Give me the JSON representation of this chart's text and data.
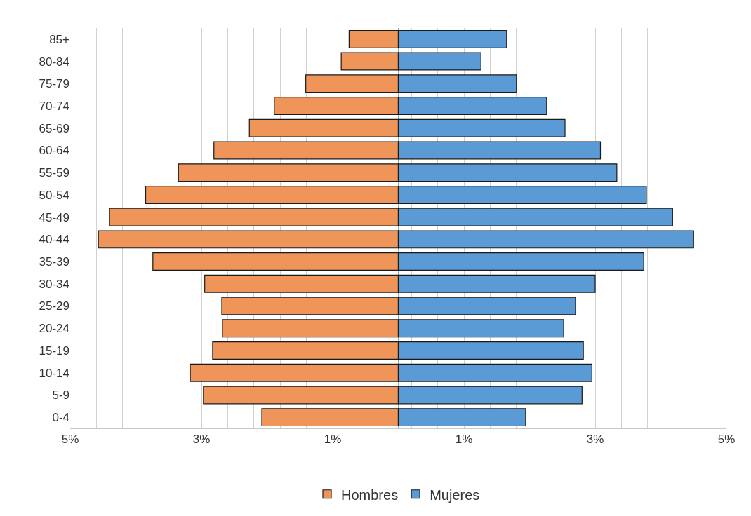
{
  "chart_data": {
    "type": "bar",
    "orientation": "horizontal",
    "categories": [
      "85+",
      "80-84",
      "75-79",
      "70-74",
      "65-69",
      "60-64",
      "55-59",
      "50-54",
      "45-49",
      "40-44",
      "35-39",
      "30-34",
      "25-29",
      "20-24",
      "15-19",
      "10-14",
      "5-9",
      "0-4"
    ],
    "series": [
      {
        "name": "Hombres",
        "color": "#f0955a",
        "values": [
          -0.75,
          -0.87,
          -1.41,
          -1.89,
          -2.27,
          -2.81,
          -3.35,
          -3.85,
          -4.4,
          -4.57,
          -3.74,
          -2.95,
          -2.69,
          -2.68,
          -2.83,
          -3.17,
          -2.97,
          -2.08
        ]
      },
      {
        "name": "Mujeres",
        "color": "#5b9bd5",
        "values": [
          1.65,
          1.26,
          1.8,
          2.26,
          2.54,
          3.08,
          3.33,
          3.78,
          4.18,
          4.5,
          3.74,
          3.0,
          2.7,
          2.52,
          2.82,
          2.95,
          2.8,
          1.94
        ]
      }
    ],
    "xlim": [
      -5,
      5
    ],
    "xticks": [
      {
        "value": -5,
        "label": "5%"
      },
      {
        "value": -4.6,
        "label": null
      },
      {
        "value": -4.2,
        "label": null
      },
      {
        "value": -3.8,
        "label": null
      },
      {
        "value": -3.4,
        "label": null
      },
      {
        "value": -3,
        "label": "3%"
      },
      {
        "value": -2.6,
        "label": null
      },
      {
        "value": -2.2,
        "label": null
      },
      {
        "value": -1.8,
        "label": null
      },
      {
        "value": -1.4,
        "label": null
      },
      {
        "value": -1,
        "label": "1%"
      },
      {
        "value": -0.6,
        "label": null
      },
      {
        "value": -0.2,
        "label": null
      },
      {
        "value": 0.2,
        "label": null
      },
      {
        "value": 0.6,
        "label": null
      },
      {
        "value": 1,
        "label": "1%"
      },
      {
        "value": 1.4,
        "label": null
      },
      {
        "value": 1.8,
        "label": null
      },
      {
        "value": 2.2,
        "label": null
      },
      {
        "value": 2.6,
        "label": null
      },
      {
        "value": 3,
        "label": "3%"
      },
      {
        "value": 3.4,
        "label": null
      },
      {
        "value": 3.8,
        "label": null
      },
      {
        "value": 4.2,
        "label": null
      },
      {
        "value": 4.6,
        "label": null
      },
      {
        "value": 5,
        "label": "5%"
      }
    ],
    "grid": "x",
    "legend": "bottom",
    "stacked": true
  }
}
